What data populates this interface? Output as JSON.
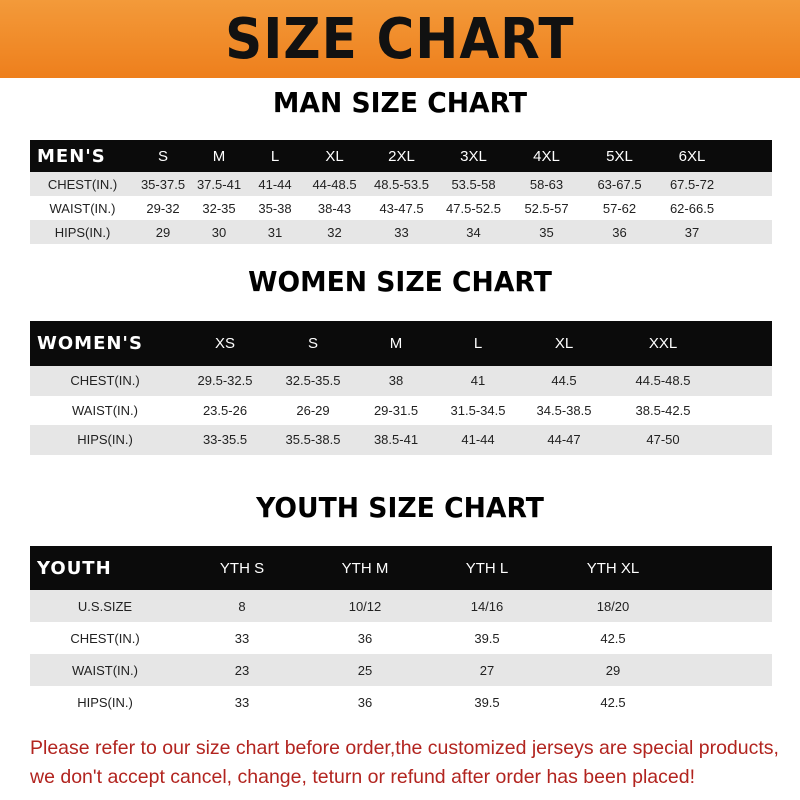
{
  "banner_title": "SIZE CHART",
  "men": {
    "title": "MAN SIZE CHART",
    "header": [
      "MEN'S",
      "S",
      "M",
      "L",
      "XL",
      "2XL",
      "3XL",
      "4XL",
      "5XL",
      "6XL"
    ],
    "rows": [
      [
        "CHEST(IN.)",
        "35-37.5",
        "37.5-41",
        "41-44",
        "44-48.5",
        "48.5-53.5",
        "53.5-58",
        "58-63",
        "63-67.5",
        "67.5-72"
      ],
      [
        "WAIST(IN.)",
        "29-32",
        "32-35",
        "35-38",
        "38-43",
        "43-47.5",
        "47.5-52.5",
        "52.5-57",
        "57-62",
        "62-66.5"
      ],
      [
        "HIPS(IN.)",
        "29",
        "30",
        "31",
        "32",
        "33",
        "34",
        "35",
        "36",
        "37"
      ]
    ]
  },
  "women": {
    "title": "WOMEN SIZE CHART",
    "header": [
      "WOMEN'S",
      "XS",
      "S",
      "M",
      "L",
      "XL",
      "XXL"
    ],
    "rows": [
      [
        "CHEST(IN.)",
        "29.5-32.5",
        "32.5-35.5",
        "38",
        "41",
        "44.5",
        "44.5-48.5"
      ],
      [
        "WAIST(IN.)",
        "23.5-26",
        "26-29",
        "29-31.5",
        "31.5-34.5",
        "34.5-38.5",
        "38.5-42.5"
      ],
      [
        "HIPS(IN.)",
        "33-35.5",
        "35.5-38.5",
        "38.5-41",
        "41-44",
        "44-47",
        "47-50"
      ]
    ]
  },
  "youth": {
    "title": "YOUTH SIZE CHART",
    "header": [
      "YOUTH",
      "YTH S",
      "YTH M",
      "YTH L",
      "YTH XL"
    ],
    "rows": [
      [
        "U.S.SIZE",
        "8",
        "10/12",
        "14/16",
        "18/20"
      ],
      [
        "CHEST(IN.)",
        "33",
        "36",
        "39.5",
        "42.5"
      ],
      [
        "WAIST(IN.)",
        "23",
        "25",
        "27",
        "29"
      ],
      [
        "HIPS(IN.)",
        "33",
        "36",
        "39.5",
        "42.5"
      ]
    ]
  },
  "note": "Please refer to our size chart before order,the customized jerseys are special products, we don't accept cancel, change, teturn or refund after order has been placed!",
  "colors": {
    "banner": "#ef8a24",
    "header_row": "#0b0b0b",
    "alt_row": "#e6e6e6",
    "note": "#b2241f"
  }
}
